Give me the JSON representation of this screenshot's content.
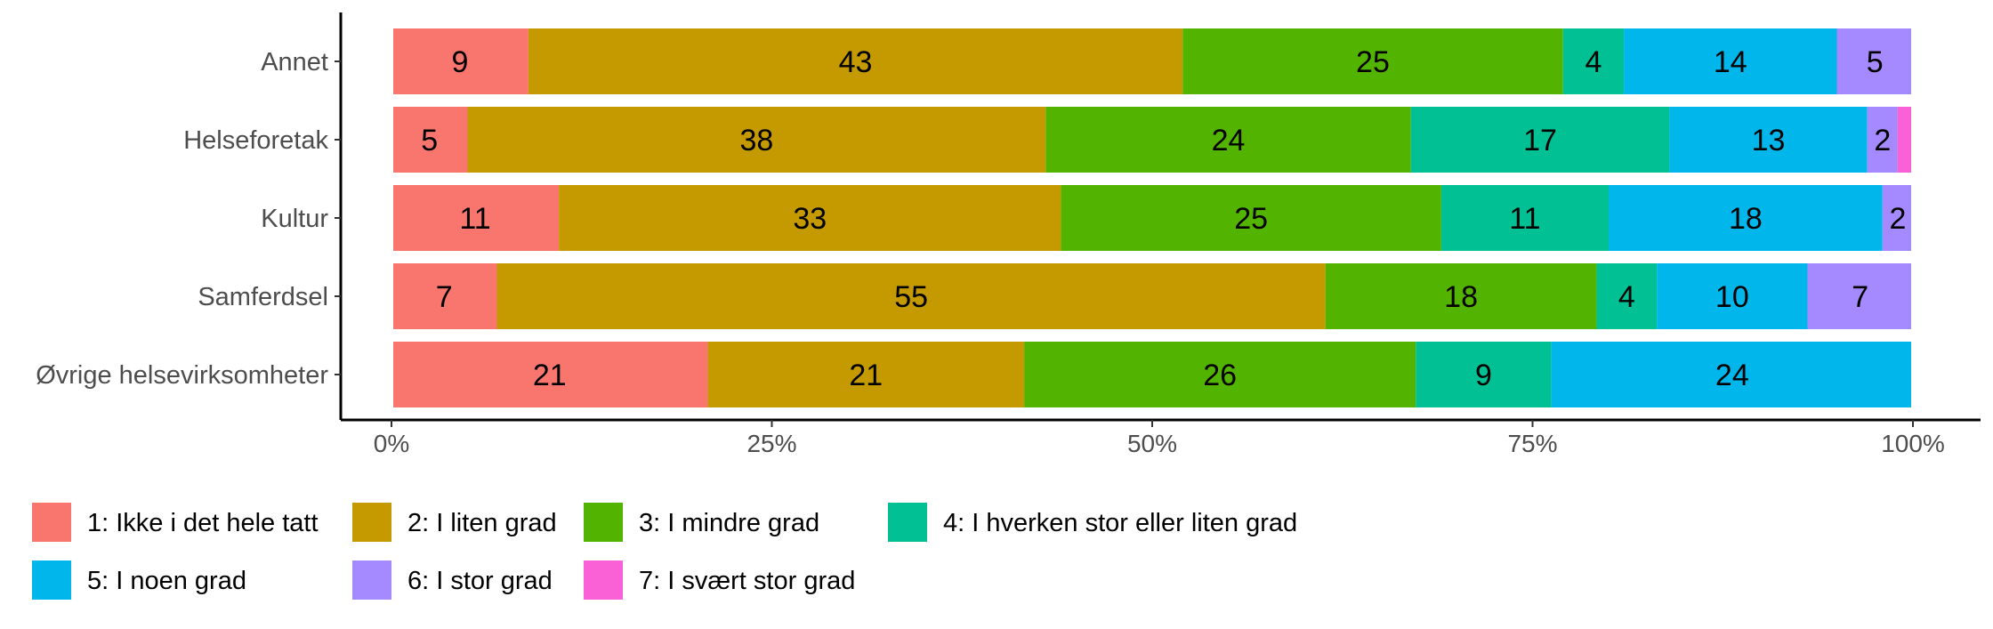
{
  "chart_data": {
    "type": "bar",
    "orientation": "horizontal",
    "stacked": "percent",
    "categories": [
      "Annet",
      "Helseforetak",
      "Kultur",
      "Samferdsel",
      "Øvrige helsevirksomheter"
    ],
    "series": [
      {
        "name": "1: Ikke i det hele tatt",
        "color": "#F8766D",
        "values": [
          9,
          5,
          11,
          7,
          21
        ]
      },
      {
        "name": "2: I liten grad",
        "color": "#C49A00",
        "values": [
          43,
          38,
          33,
          55,
          21
        ]
      },
      {
        "name": "3: I mindre grad",
        "color": "#53B400",
        "values": [
          25,
          24,
          25,
          18,
          26
        ]
      },
      {
        "name": "4: I hverken stor eller liten grad",
        "color": "#00C094",
        "values": [
          4,
          17,
          11,
          4,
          9
        ]
      },
      {
        "name": "5: I noen grad",
        "color": "#00B6EB",
        "values": [
          14,
          13,
          18,
          10,
          24
        ]
      },
      {
        "name": "6: I stor grad",
        "color": "#A58AFF",
        "values": [
          5,
          2,
          2,
          7,
          0
        ]
      },
      {
        "name": "7: I svært stor grad",
        "color": "#FB61D7",
        "values": [
          0,
          1,
          0,
          0,
          0
        ]
      }
    ],
    "xlim": [
      0,
      1
    ],
    "x_ticks": [
      "0%",
      "25%",
      "50%",
      "75%",
      "100%"
    ],
    "legend_position": "bottom",
    "grid": false
  }
}
